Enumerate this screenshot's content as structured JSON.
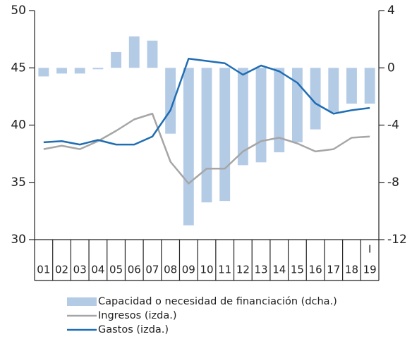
{
  "chart_data": {
    "type": "bar-line",
    "categories": [
      "01",
      "02",
      "03",
      "04",
      "05",
      "06",
      "07",
      "08",
      "09",
      "10",
      "11",
      "12",
      "13",
      "14",
      "15",
      "16",
      "17",
      "18",
      "19"
    ],
    "annotation": "I",
    "ylim": [
      30,
      50
    ],
    "yticks": [
      30,
      35,
      40,
      45,
      50
    ],
    "y2lim": [
      -12,
      4
    ],
    "y2ticks": [
      -12,
      -8,
      -4,
      0,
      4
    ],
    "series": [
      {
        "name": "Capacidad o necesidad de financiación (dcha.)",
        "type": "bar",
        "axis": "y2",
        "color": "#b4cbe6",
        "values": [
          -0.6,
          -0.4,
          -0.4,
          -0.1,
          1.1,
          2.2,
          1.9,
          -4.6,
          -11.0,
          -9.4,
          -9.3,
          -6.8,
          -6.6,
          -5.9,
          -5.2,
          -4.3,
          -3.1,
          -2.5,
          -2.5
        ]
      },
      {
        "name": "Ingresos (izda.)",
        "type": "line",
        "color": "#a6a6a6",
        "values": [
          37.9,
          38.2,
          37.9,
          38.6,
          39.5,
          40.5,
          41.0,
          36.8,
          34.9,
          36.2,
          36.2,
          37.7,
          38.6,
          38.9,
          38.4,
          37.7,
          37.9,
          38.9,
          39.0
        ]
      },
      {
        "name": "Gastos (izda.)",
        "type": "line",
        "color": "#1f6db3",
        "values": [
          38.5,
          38.6,
          38.3,
          38.7,
          38.3,
          38.3,
          39.0,
          41.3,
          45.8,
          45.6,
          45.4,
          44.4,
          45.2,
          44.7,
          43.7,
          41.9,
          41.0,
          41.3,
          41.5
        ]
      }
    ]
  }
}
